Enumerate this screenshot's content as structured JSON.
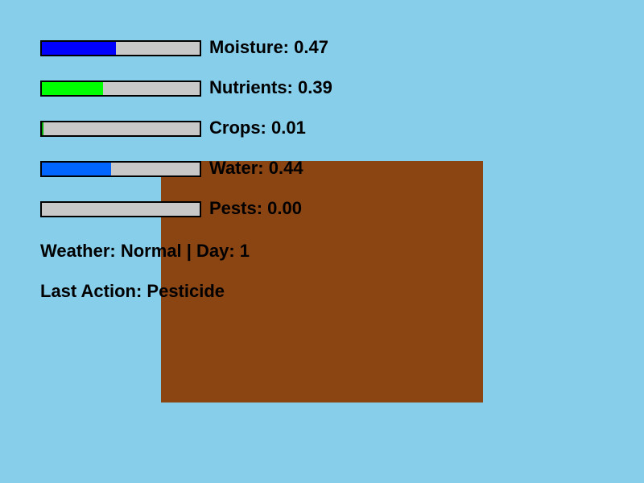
{
  "scene": {
    "sky_color": "#87CEEB",
    "soil_color": "#8B4513"
  },
  "stats": [
    {
      "key": "moisture",
      "label": "Moisture: 0.47",
      "value": 0.47,
      "color": "#0000FF"
    },
    {
      "key": "nutrients",
      "label": "Nutrients: 0.39",
      "value": 0.39,
      "color": "#00FF00"
    },
    {
      "key": "crops",
      "label": "Crops: 0.01",
      "value": 0.01,
      "color": "#00AA00"
    },
    {
      "key": "water",
      "label": "Water: 0.44",
      "value": 0.44,
      "color": "#0064FF"
    },
    {
      "key": "pests",
      "label": "Pests: 0.00",
      "value": 0.0,
      "color": "#FF0000"
    }
  ],
  "status": {
    "weather_day": "Weather: Normal | Day: 1",
    "last_action": "Last Action: Pesticide"
  }
}
